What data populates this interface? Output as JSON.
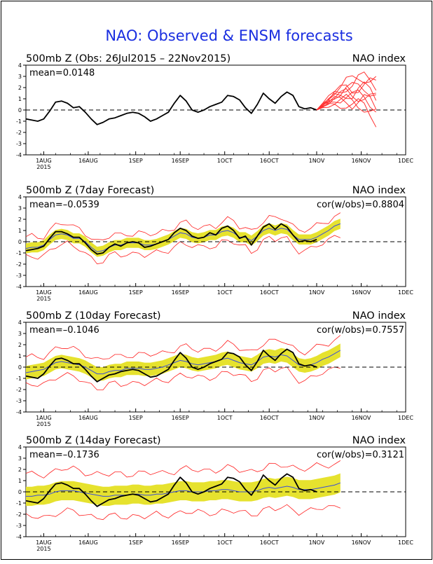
{
  "figure_title": "NAO: Observed & ENSM forecasts",
  "colors": {
    "title": "#1a2ee0",
    "observed": "#000000",
    "ensemble_mean": "#3a4ed8",
    "ensemble_band": "#e6e22e",
    "ensemble_range": "#ff2020",
    "members": "#ff3030"
  },
  "chart_data": [
    {
      "type": "line",
      "title_left": "500mb  Z (Obs: 26Jul2015 – 22Nov2015)",
      "title_right": "NAO index",
      "mean_label": "mean=0.0148",
      "cor_label": "",
      "ylim": [
        -4,
        4
      ],
      "yticks": [
        "4",
        "3",
        "2",
        "1",
        "0",
        "-1",
        "-2",
        "-3",
        "-4"
      ],
      "xticks": [
        "1AUG",
        "16AUG",
        "1SEP",
        "16SEP",
        "1OCT",
        "16OCT",
        "1NOV",
        "16NOV",
        "1DEC"
      ],
      "year_label": "2015",
      "zero_line": "dashed",
      "series": [
        {
          "role": "observed",
          "x_start": 0,
          "step": 2,
          "y": [
            -0.8,
            -0.9,
            -1.0,
            -0.8,
            -0.1,
            0.7,
            0.8,
            0.6,
            0.2,
            0.3,
            -0.2,
            -0.8,
            -1.3,
            -1.1,
            -0.8,
            -0.7,
            -0.5,
            -0.3,
            -0.2,
            -0.3,
            -0.6,
            -1.0,
            -0.8,
            -0.5,
            -0.2,
            0.6,
            1.3,
            0.8,
            0.0,
            -0.2,
            0.0,
            0.3,
            0.5,
            0.7,
            1.3,
            1.2,
            0.9,
            0.2,
            -0.3,
            0.5,
            1.5,
            1.0,
            0.6,
            1.2,
            1.6,
            1.3,
            0.3,
            0.1,
            0.2,
            0.0
          ]
        },
        {
          "role": "members",
          "x_start": 98,
          "step": 2,
          "count": 10,
          "y": [
            0.0,
            0.4,
            0.8,
            1.2,
            1.4,
            1.6,
            1.5,
            1.7,
            1.8,
            1.6,
            1.2
          ]
        }
      ]
    },
    {
      "type": "line",
      "title_left": "500mb  Z (7day Forecast)",
      "title_right": "NAO index",
      "mean_label": "mean=–0.0539",
      "cor_label": "cor(w/obs)=0.8804",
      "ylim": [
        -4,
        4
      ],
      "yticks": [
        "4",
        "3",
        "2",
        "1",
        "0",
        "-1",
        "-2",
        "-3",
        "-4"
      ],
      "xticks": [
        "1AUG",
        "16AUG",
        "1SEP",
        "16SEP",
        "1OCT",
        "16OCT",
        "1NOV",
        "16NOV",
        "1DEC"
      ],
      "year_label": "2015",
      "zero_line": "dashed",
      "series": [
        {
          "role": "observed",
          "x_start": 0,
          "step": 2,
          "y": [
            -0.8,
            -0.7,
            -0.6,
            -0.4,
            0.3,
            0.9,
            0.9,
            0.7,
            0.4,
            0.4,
            -0.1,
            -0.7,
            -1.1,
            -1.0,
            -0.5,
            -0.2,
            -0.4,
            -0.1,
            0.0,
            -0.1,
            -0.5,
            -0.4,
            -0.2,
            0.0,
            0.2,
            0.8,
            1.2,
            1.0,
            0.5,
            0.3,
            0.4,
            0.8,
            0.6,
            1.2,
            1.4,
            1.0,
            0.3,
            0.5,
            -0.3,
            0.5,
            1.3,
            1.6,
            1.1,
            1.6,
            1.3,
            0.6,
            0.0,
            0.1,
            0.0,
            0.2
          ]
        },
        {
          "role": "ensemble_mean",
          "x_start": 0,
          "step": 2,
          "y": [
            -0.6,
            -0.5,
            -0.5,
            -0.3,
            0.2,
            0.6,
            0.7,
            0.6,
            0.3,
            0.3,
            0.0,
            -0.5,
            -0.9,
            -0.8,
            -0.5,
            -0.3,
            -0.3,
            -0.1,
            -0.1,
            -0.1,
            -0.3,
            -0.3,
            -0.2,
            0.0,
            0.2,
            0.5,
            0.8,
            0.7,
            0.4,
            0.3,
            0.4,
            0.6,
            0.6,
            0.9,
            1.0,
            0.8,
            0.4,
            0.4,
            0.1,
            0.5,
            1.0,
            1.2,
            1.0,
            1.2,
            1.1,
            0.6,
            0.2,
            0.2,
            0.2,
            0.4,
            0.7,
            1.0,
            1.4,
            1.6
          ]
        },
        {
          "role": "band",
          "half_width": 0.45
        },
        {
          "role": "range",
          "half_width": 0.9
        }
      ]
    },
    {
      "type": "line",
      "title_left": "500mb  Z (10day Forecast)",
      "title_right": "NAO index",
      "mean_label": "mean=–0.1046",
      "cor_label": "cor(w/obs)=0.7557",
      "ylim": [
        -4,
        4
      ],
      "yticks": [
        "4",
        "3",
        "2",
        "1",
        "0",
        "-1",
        "-2",
        "-3",
        "-4"
      ],
      "xticks": [
        "1AUG",
        "16AUG",
        "1SEP",
        "16SEP",
        "1OCT",
        "16OCT",
        "1NOV",
        "16NOV",
        "1DEC"
      ],
      "year_label": "2015",
      "zero_line": "dashed",
      "series": [
        {
          "role": "observed",
          "x_start": 0,
          "step": 2,
          "y": [
            -0.8,
            -0.9,
            -1.0,
            -0.6,
            0.1,
            0.7,
            0.8,
            0.6,
            0.3,
            0.3,
            -0.2,
            -0.8,
            -1.3,
            -1.0,
            -0.7,
            -0.6,
            -0.4,
            -0.3,
            -0.2,
            -0.3,
            -0.6,
            -0.9,
            -0.8,
            -0.5,
            -0.2,
            0.6,
            1.3,
            0.8,
            0.0,
            -0.2,
            0.0,
            0.3,
            0.5,
            0.7,
            1.3,
            1.2,
            0.9,
            0.2,
            -0.3,
            0.5,
            1.5,
            1.0,
            0.6,
            1.2,
            1.6,
            1.3,
            0.3,
            0.1,
            0.2,
            0.0
          ]
        },
        {
          "role": "ensemble_mean",
          "x_start": 0,
          "step": 2,
          "y": [
            -0.5,
            -0.4,
            -0.3,
            -0.2,
            0.1,
            0.4,
            0.5,
            0.4,
            0.3,
            0.2,
            0.0,
            -0.3,
            -0.6,
            -0.6,
            -0.4,
            -0.3,
            -0.3,
            -0.1,
            -0.1,
            -0.1,
            -0.2,
            -0.2,
            -0.1,
            0.0,
            0.2,
            0.4,
            0.6,
            0.5,
            0.3,
            0.2,
            0.3,
            0.4,
            0.5,
            0.7,
            0.8,
            0.6,
            0.4,
            0.3,
            0.2,
            0.5,
            0.9,
            1.0,
            0.9,
            1.1,
            1.0,
            0.6,
            0.2,
            0.1,
            0.2,
            0.4,
            0.7,
            0.9,
            1.2,
            1.5
          ]
        },
        {
          "role": "band",
          "half_width": 0.6
        },
        {
          "role": "range",
          "half_width": 1.25
        }
      ]
    },
    {
      "type": "line",
      "title_left": "500mb  Z (14day Forecast)",
      "title_right": "NAO index",
      "mean_label": "mean=–0.1736",
      "cor_label": "cor(w/obs)=0.3121",
      "ylim": [
        -4,
        4
      ],
      "yticks": [
        "4",
        "3",
        "2",
        "1",
        "0",
        "-1",
        "-2",
        "-3",
        "-4"
      ],
      "xticks": [
        "1AUG",
        "16AUG",
        "1SEP",
        "16SEP",
        "1OCT",
        "16OCT",
        "1NOV",
        "16NOV",
        "1DEC"
      ],
      "year_label": "2015",
      "zero_line": "dashed",
      "series": [
        {
          "role": "observed",
          "x_start": 0,
          "step": 2,
          "y": [
            -0.8,
            -0.9,
            -1.0,
            -0.6,
            0.1,
            0.7,
            0.8,
            0.6,
            0.3,
            0.3,
            -0.2,
            -0.8,
            -1.3,
            -1.0,
            -0.7,
            -0.6,
            -0.4,
            -0.3,
            -0.2,
            -0.3,
            -0.6,
            -0.9,
            -0.8,
            -0.5,
            -0.2,
            0.6,
            1.3,
            0.8,
            0.0,
            -0.2,
            0.0,
            0.3,
            0.5,
            0.7,
            1.3,
            1.2,
            0.9,
            0.2,
            -0.3,
            0.5,
            1.5,
            1.0,
            0.6,
            1.2,
            1.6,
            1.3,
            0.3,
            0.1,
            0.2,
            0.0
          ]
        },
        {
          "role": "ensemble_mean",
          "x_start": 0,
          "step": 2,
          "y": [
            -0.4,
            -0.4,
            -0.3,
            -0.3,
            -0.2,
            0.0,
            0.1,
            0.1,
            0.1,
            0.0,
            -0.1,
            -0.2,
            -0.3,
            -0.4,
            -0.4,
            -0.3,
            -0.3,
            -0.3,
            -0.2,
            -0.2,
            -0.3,
            -0.3,
            -0.2,
            -0.2,
            -0.1,
            0.0,
            0.1,
            0.1,
            0.0,
            0.0,
            0.0,
            0.1,
            0.1,
            0.2,
            0.2,
            0.1,
            0.0,
            0.0,
            0.0,
            0.1,
            0.3,
            0.4,
            0.3,
            0.4,
            0.5,
            0.4,
            0.2,
            0.2,
            0.2,
            0.3,
            0.4,
            0.5,
            0.6,
            0.8
          ]
        },
        {
          "role": "band",
          "half_width": 0.85
        },
        {
          "role": "range",
          "half_width": 1.9
        }
      ]
    }
  ]
}
